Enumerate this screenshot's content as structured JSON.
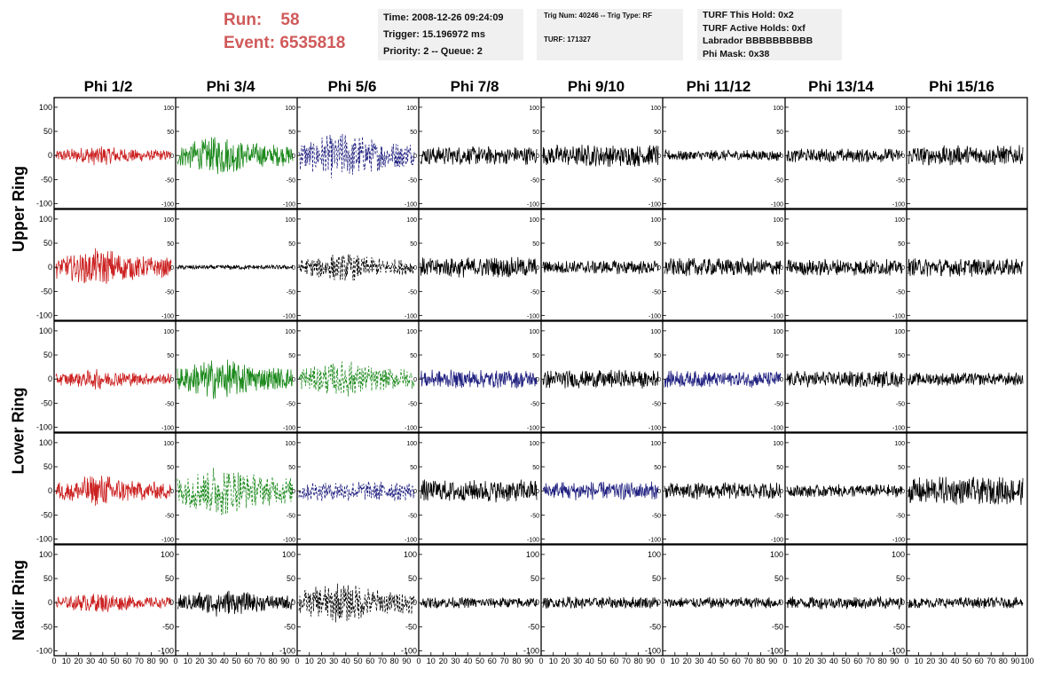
{
  "run": {
    "run_label": "Run:",
    "run_value": "58",
    "event_label": "Event:",
    "event_value": "6535818",
    "color": "#d05a5a"
  },
  "info_time": {
    "time": "Time: 2008-12-26 09:24:09",
    "trigger": "Trigger: 15.196972 ms",
    "priority": "Priority: 2 -- Queue: 2"
  },
  "info_trig": {
    "trig": "Trig Num: 40246 -- Trig Type: RF",
    "turf": "TURF: 171327"
  },
  "info_turf": {
    "hold": "TURF This Hold: 0x2",
    "active": "TURF Active Holds: 0xf",
    "labrador": "Labrador BBBBBBBBBB",
    "phimask": "Phi Mask: 0x38"
  },
  "columns": [
    "Phi 1/2",
    "Phi 3/4",
    "Phi 5/6",
    "Phi 7/8",
    "Phi 9/10",
    "Phi 11/12",
    "Phi 13/14",
    "Phi 15/16"
  ],
  "rings": [
    "Upper Ring",
    "Lower Ring",
    "Nadir Ring"
  ],
  "chart_data": {
    "type": "line",
    "xlim": [
      0,
      100
    ],
    "ylim": [
      -110,
      120
    ],
    "xticks": [
      0,
      10,
      20,
      30,
      40,
      50,
      60,
      70,
      80,
      90,
      100
    ],
    "yticks": [
      -100,
      -50,
      0,
      50,
      100
    ],
    "colors": {
      "red": "#cc2222",
      "green": "#1d8a1d",
      "blue": "#202080",
      "black": "#000000"
    },
    "panels": [
      [
        {
          "color": "red",
          "amp": 22,
          "env": "c"
        },
        {
          "color": "green",
          "amp": 42,
          "env": "c"
        },
        {
          "color": "blue",
          "amp": 52,
          "env": "c",
          "dash": true
        },
        {
          "color": "black",
          "amp": 20,
          "env": "f"
        },
        {
          "color": "black",
          "amp": 24,
          "env": "f"
        },
        {
          "color": "black",
          "amp": 12,
          "env": "f"
        },
        {
          "color": "black",
          "amp": 15,
          "env": "f"
        },
        {
          "color": "black",
          "amp": 22,
          "env": "f"
        }
      ],
      [
        {
          "color": "red",
          "amp": 40,
          "env": "c"
        },
        {
          "color": "black",
          "amp": 5,
          "env": "f"
        },
        {
          "color": "black",
          "amp": 30,
          "env": "c",
          "dash": true
        },
        {
          "color": "black",
          "amp": 22,
          "env": "f"
        },
        {
          "color": "black",
          "amp": 15,
          "env": "f"
        },
        {
          "color": "black",
          "amp": 20,
          "env": "f"
        },
        {
          "color": "black",
          "amp": 18,
          "env": "f"
        },
        {
          "color": "black",
          "amp": 20,
          "env": "f"
        }
      ],
      [
        {
          "color": "red",
          "amp": 22,
          "env": "c"
        },
        {
          "color": "green",
          "amp": 45,
          "env": "c"
        },
        {
          "color": "green",
          "amp": 40,
          "env": "c",
          "dash": true
        },
        {
          "color": "blue",
          "amp": 20,
          "env": "f"
        },
        {
          "color": "black",
          "amp": 20,
          "env": "f"
        },
        {
          "color": "blue",
          "amp": 18,
          "env": "f"
        },
        {
          "color": "black",
          "amp": 18,
          "env": "f"
        },
        {
          "color": "black",
          "amp": 14,
          "env": "f"
        }
      ],
      [
        {
          "color": "red",
          "amp": 35,
          "env": "c"
        },
        {
          "color": "green",
          "amp": 55,
          "env": "c",
          "dash": true
        },
        {
          "color": "blue",
          "amp": 22,
          "env": "f",
          "dash": true
        },
        {
          "color": "black",
          "amp": 25,
          "env": "f"
        },
        {
          "color": "blue",
          "amp": 20,
          "env": "f"
        },
        {
          "color": "black",
          "amp": 18,
          "env": "f"
        },
        {
          "color": "black",
          "amp": 14,
          "env": "f"
        },
        {
          "color": "black",
          "amp": 30,
          "env": "f"
        }
      ],
      [
        {
          "color": "red",
          "amp": 22,
          "env": "c"
        },
        {
          "color": "black",
          "amp": 30,
          "env": "c"
        },
        {
          "color": "black",
          "amp": 45,
          "env": "c",
          "dash": true
        },
        {
          "color": "black",
          "amp": 12,
          "env": "f"
        },
        {
          "color": "black",
          "amp": 13,
          "env": "f"
        },
        {
          "color": "black",
          "amp": 12,
          "env": "f"
        },
        {
          "color": "black",
          "amp": 14,
          "env": "f"
        },
        {
          "color": "black",
          "amp": 12,
          "env": "f"
        }
      ]
    ]
  }
}
